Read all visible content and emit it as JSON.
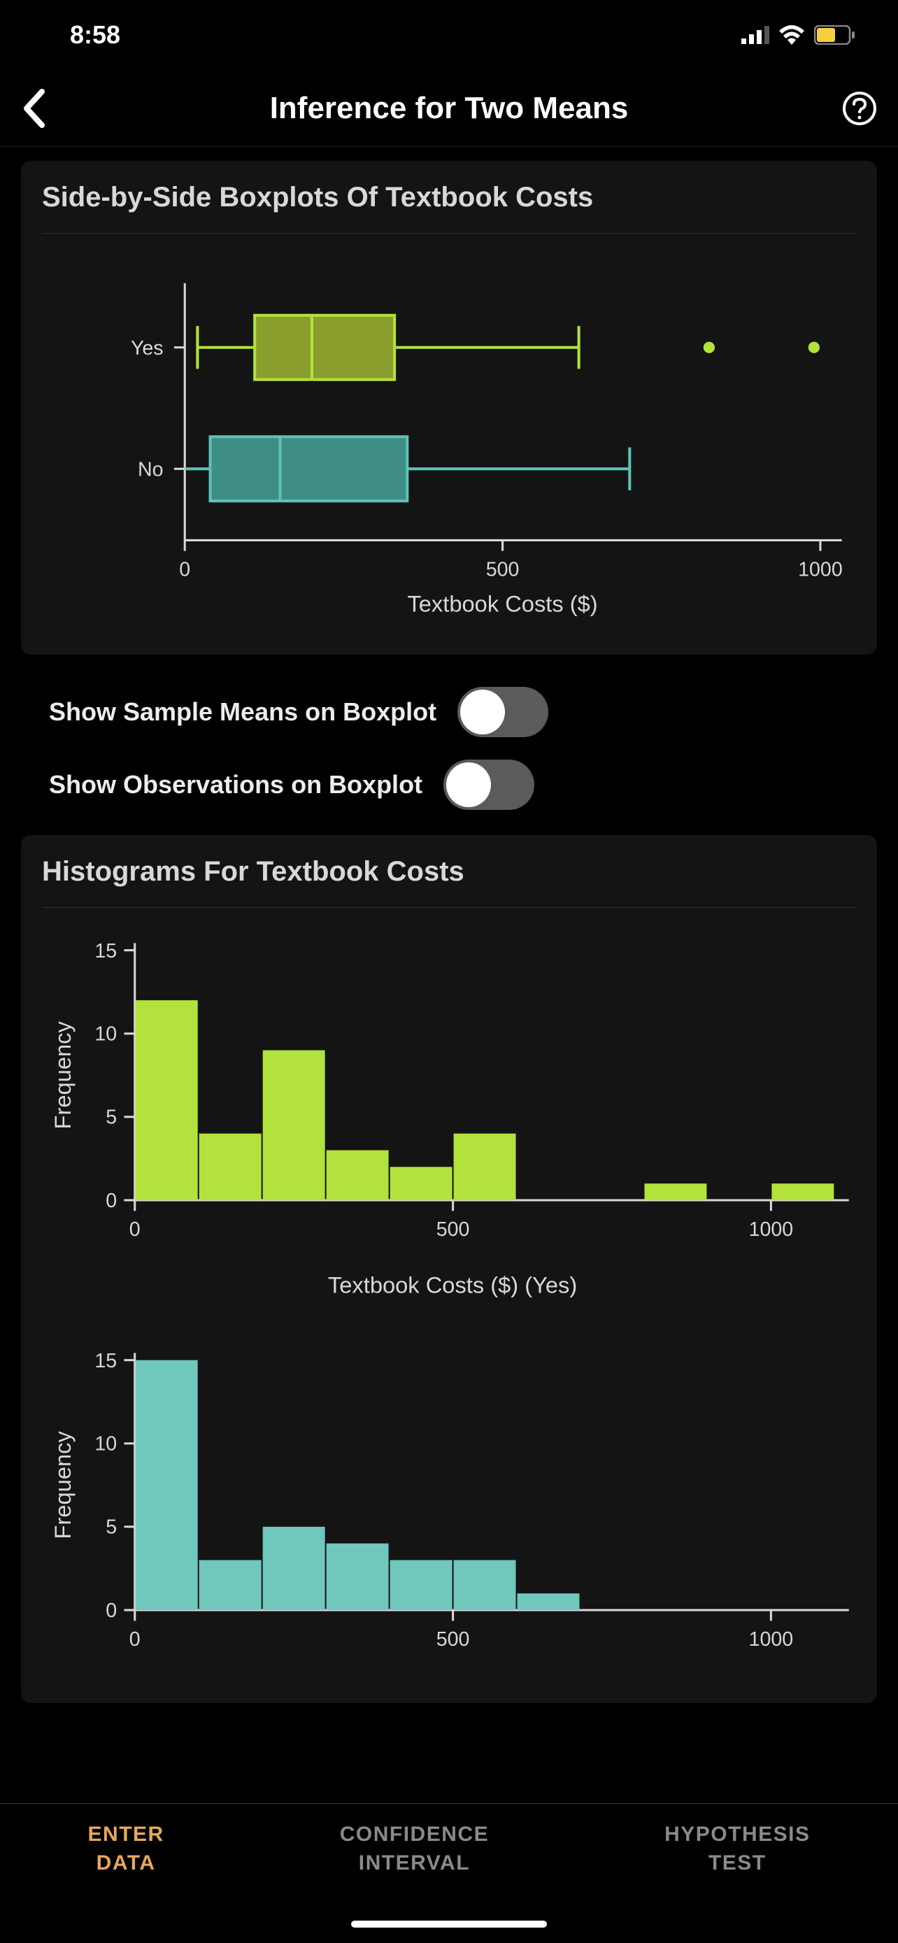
{
  "status": {
    "time": "8:58"
  },
  "nav": {
    "title": "Inference for Two Means"
  },
  "boxplot_card": {
    "title": "Side-by-Side Boxplots Of Textbbook Costs",
    "title_actual": "Side-by-Side Boxplots Of Textbook Costs",
    "xlabel": "Textbook Costs ($)",
    "xlim": [
      0,
      1000
    ],
    "xticks": [
      0,
      500,
      1000
    ],
    "categories": [
      "Yes",
      "No"
    ],
    "series": {
      "Yes": {
        "min": 20,
        "q1": 110,
        "median": 200,
        "q3": 330,
        "max": 620,
        "outliers": [
          825,
          990
        ],
        "color": "#b2e23b",
        "fill": "#8a9e2e"
      },
      "No": {
        "min": 0,
        "q1": 40,
        "median": 150,
        "q3": 350,
        "max": 700,
        "outliers": [],
        "color": "#5fc2b4",
        "fill": "#3e8d86"
      }
    },
    "axis_color": "#d8d8d8",
    "background": "#141414"
  },
  "toggles": {
    "means": {
      "label": "Show Sample Means on Boxplot",
      "value": false
    },
    "obs": {
      "label": "Show Observations on Boxplot",
      "value": false
    }
  },
  "histograms_card": {
    "title": "Histograms For Textbook Costs",
    "hist_yes": {
      "xlabel": "Textbook Costs ($) (Yes)",
      "ylabel": "Frequency",
      "xticks": [
        0,
        500,
        1000
      ],
      "yticks": [
        0,
        5,
        10,
        15
      ],
      "ylim": [
        0,
        15
      ],
      "xlim": [
        0,
        1100
      ],
      "bin_width": 100,
      "bar_color": "#b2e23b",
      "values": [
        12,
        4,
        9,
        3,
        2,
        4,
        0,
        0,
        1,
        0,
        1
      ]
    },
    "hist_no": {
      "ylabel": "Frequency",
      "xticks": [
        0,
        500,
        1000
      ],
      "yticks": [
        0,
        5,
        10,
        15
      ],
      "ylim": [
        0,
        15
      ],
      "xlim": [
        0,
        1100
      ],
      "bin_width": 100,
      "bar_color": "#6fc8bb",
      "values": [
        15,
        3,
        5,
        4,
        3,
        3,
        1,
        0,
        0,
        0,
        0
      ]
    },
    "axis_color": "#d8d8d8"
  },
  "tabs": {
    "items": [
      {
        "line1": "ENTER",
        "line2": "DATA",
        "active": true
      },
      {
        "line1": "CONFIDENCE",
        "line2": "INTERVAL",
        "active": false
      },
      {
        "line1": "HYPOTHESIS",
        "line2": "TEST",
        "active": false
      }
    ]
  },
  "colors": {
    "background": "#000000",
    "card": "#141414",
    "text": "#d8d8d8",
    "active_tab": "#e6a85a",
    "inactive_tab": "#8a8a8a",
    "toggle_track": "#5b5b5b",
    "battery": "#f7cf3e"
  }
}
